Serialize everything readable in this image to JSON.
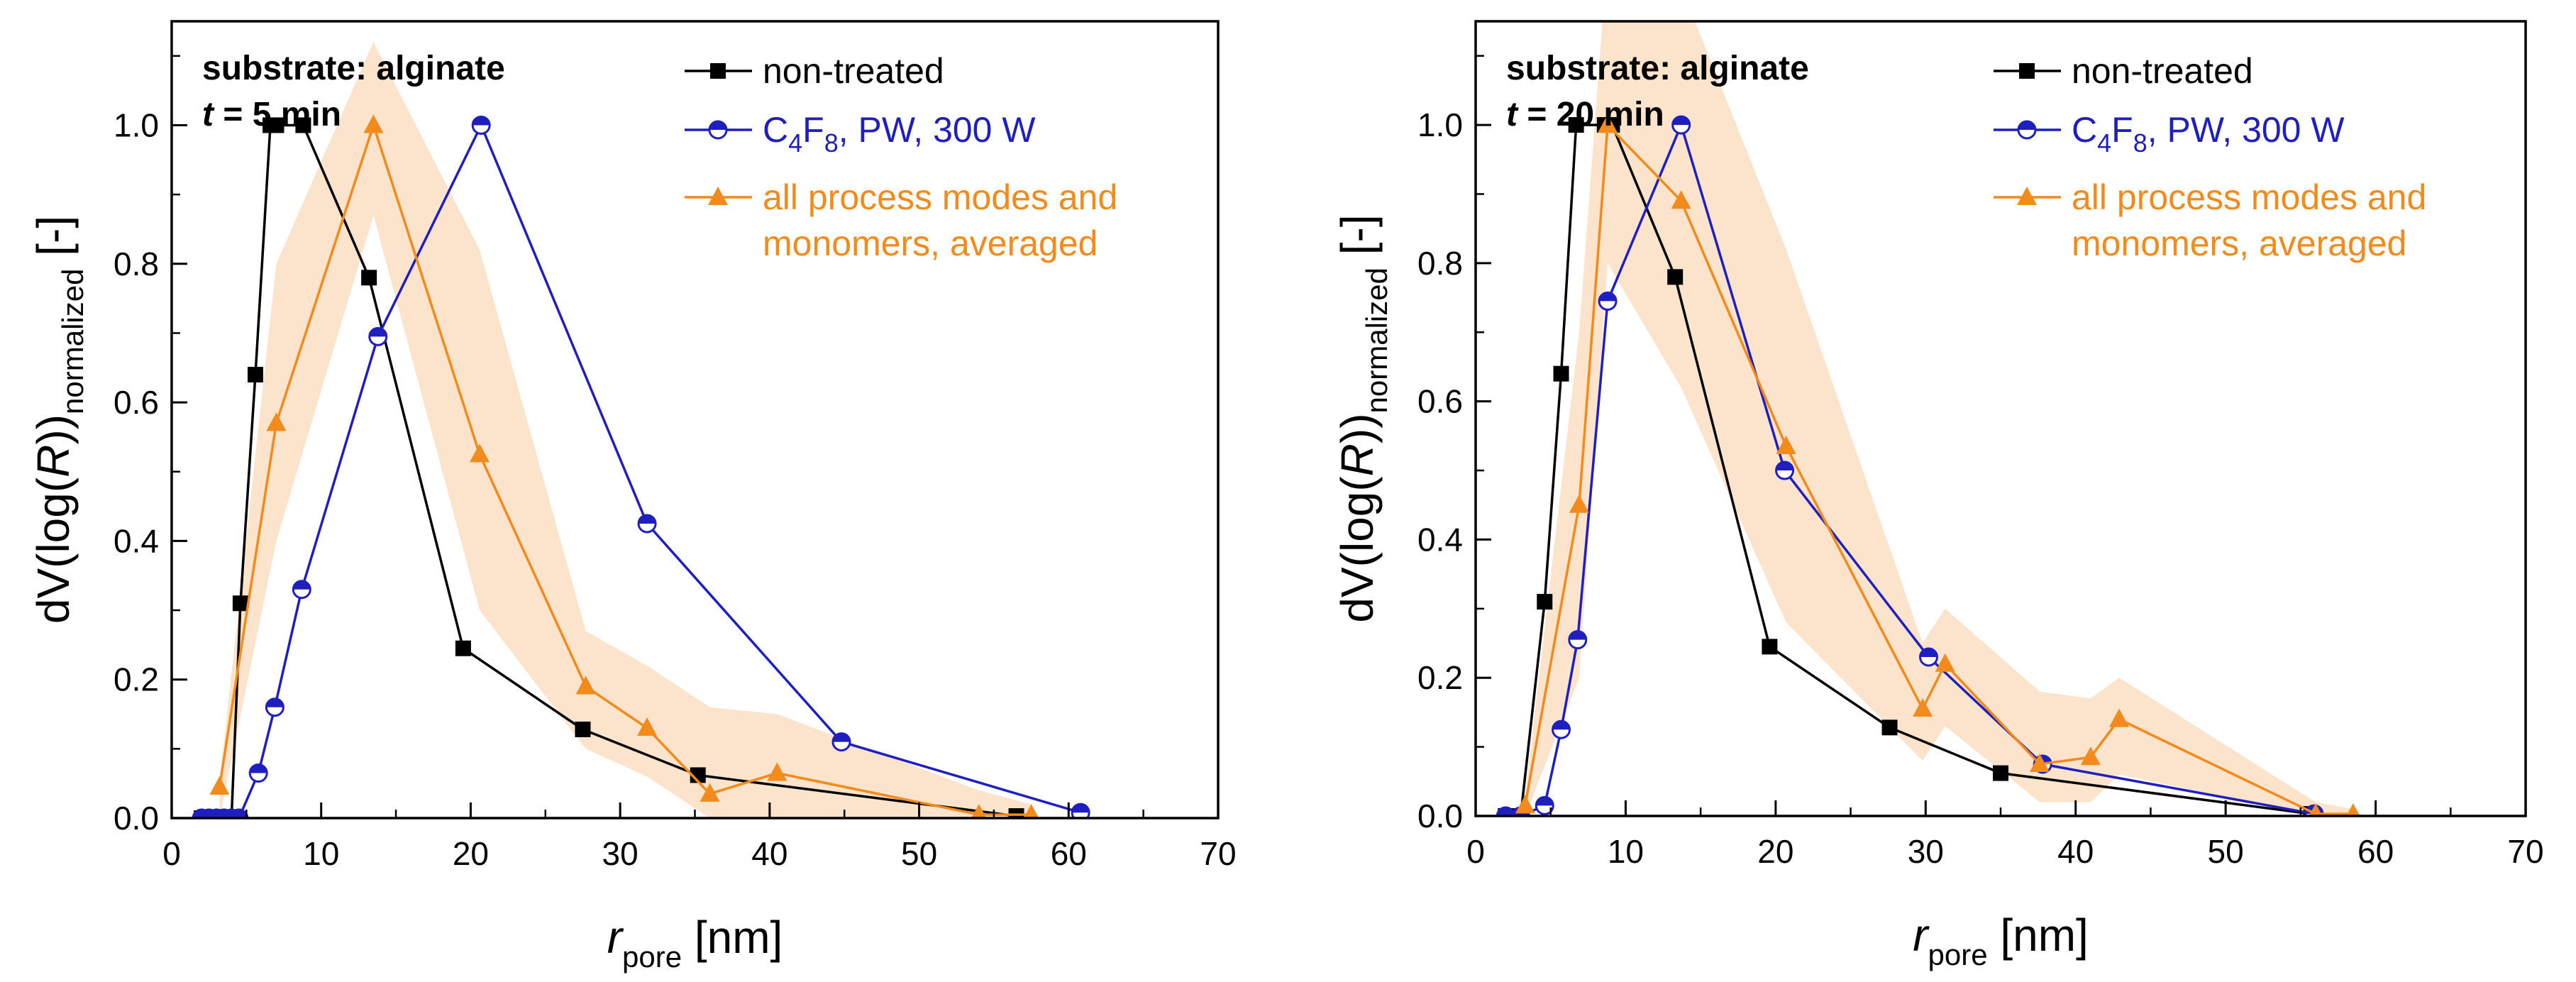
{
  "colors": {
    "non_treated": "#000000",
    "c4f8": "#1f1fbf",
    "averaged": "#f28a1c",
    "band": "#fbe3cc"
  },
  "chart_data": [
    {
      "type": "line",
      "annotation": {
        "line1": "substrate: alginate",
        "t_symbol": "t",
        "t_rest": " = 5 min"
      },
      "xlabel": {
        "main": "r",
        "sub": "pore",
        "unit": " [nm]"
      },
      "ylabel": {
        "prefix": "dV(log(",
        "italic": "R",
        "middle": "))",
        "sub": "normalized",
        "unit": " [-]"
      },
      "xlim": [
        0,
        70
      ],
      "ylim": [
        0,
        1.15
      ],
      "xticks": [
        "0",
        "10",
        "20",
        "30",
        "40",
        "50",
        "60",
        "70"
      ],
      "yticks": [
        "0.0",
        "0.2",
        "0.4",
        "0.6",
        "0.8",
        "1.0"
      ],
      "legend_position": "top-right",
      "series": [
        {
          "name": "non-treated",
          "key": "non_treated",
          "marker": "square",
          "x": [
            2,
            2.5,
            3,
            3.5,
            4,
            4.6,
            5.6,
            6.6,
            7.0,
            8.8,
            13.2,
            19.5,
            27.5,
            35.2,
            56.5
          ],
          "y": [
            0,
            0,
            0,
            0,
            0,
            0.31,
            0.64,
            1.0,
            1.0,
            1.0,
            0.78,
            0.245,
            0.128,
            0.062,
            0.003
          ]
        },
        {
          "name_parts": [
            "C",
            "4",
            "F",
            "8",
            ", PW, 300 W"
          ],
          "key": "c4f8",
          "marker": "half-circle",
          "x": [
            2,
            2.5,
            3,
            3.5,
            4,
            4.5,
            5.8,
            6.9,
            8.7,
            13.8,
            20.7,
            31.8,
            44.8,
            60.8
          ],
          "y": [
            0,
            0,
            0,
            0,
            0,
            0,
            0.065,
            0.16,
            0.33,
            0.695,
            1.0,
            0.425,
            0.11,
            0.008
          ]
        },
        {
          "name_line1": "all process modes and",
          "name_line2": "monomers, averaged",
          "key": "averaged",
          "marker": "triangle",
          "x": [
            3.2,
            7.0,
            13.5,
            20.6,
            27.7,
            31.8,
            36.0,
            40.5,
            54.0,
            57.5
          ],
          "y": [
            0.045,
            0.57,
            1.0,
            0.525,
            0.19,
            0.13,
            0.035,
            0.065,
            0.005,
            0.005
          ],
          "band_upper": [
            0.05,
            0.8,
            1.12,
            0.82,
            0.27,
            0.22,
            0.16,
            0.15,
            0.04,
            0.02
          ],
          "band_lower": [
            0.0,
            0.4,
            0.87,
            0.3,
            0.1,
            0.06,
            0.0,
            0.0,
            0.0,
            0.0
          ]
        }
      ]
    },
    {
      "type": "line",
      "annotation": {
        "line1": "substrate: alginate",
        "t_symbol": "t",
        "t_rest": " = 20 min"
      },
      "xlabel": {
        "main": "r",
        "sub": "pore",
        "unit": " [nm]"
      },
      "ylabel": {
        "prefix": "dV(log(",
        "italic": "R",
        "middle": "))",
        "sub": "normalized",
        "unit": " [-]"
      },
      "xlim": [
        0,
        70
      ],
      "ylim": [
        0,
        1.15
      ],
      "xticks": [
        "0",
        "10",
        "20",
        "30",
        "40",
        "50",
        "60",
        "70"
      ],
      "yticks": [
        "0.0",
        "0.2",
        "0.4",
        "0.6",
        "0.8",
        "1.0"
      ],
      "legend_position": "top-right",
      "series": [
        {
          "name": "non-treated",
          "key": "non_treated",
          "marker": "square",
          "x": [
            2,
            3,
            4.6,
            5.7,
            6.7,
            8.6,
            9.1,
            13.3,
            19.6,
            27.6,
            35.0,
            55.7
          ],
          "y": [
            0,
            0,
            0.31,
            0.64,
            1.0,
            1.0,
            1.0,
            0.78,
            0.245,
            0.128,
            0.062,
            0.003
          ]
        },
        {
          "name_parts": [
            "C",
            "4",
            "F",
            "8",
            ", PW, 300 W"
          ],
          "key": "c4f8",
          "marker": "half-circle",
          "x": [
            2,
            3,
            4.6,
            5.7,
            6.8,
            8.8,
            13.7,
            20.6,
            30.2,
            37.8,
            55.9
          ],
          "y": [
            0,
            0,
            0.015,
            0.125,
            0.255,
            0.745,
            1.0,
            0.5,
            0.23,
            0.075,
            0.003
          ]
        },
        {
          "name_line1": "all process modes and",
          "name_line2": "monomers, averaged",
          "key": "averaged",
          "marker": "triangle",
          "x": [
            3.3,
            6.9,
            8.8,
            13.7,
            20.7,
            29.8,
            31.3,
            37.6,
            41.0,
            42.9,
            56.0,
            58.5
          ],
          "y": [
            0.015,
            0.45,
            1.0,
            0.89,
            0.535,
            0.155,
            0.22,
            0.075,
            0.085,
            0.14,
            0.003,
            0.003
          ],
          "band_upper": [
            0.03,
            0.7,
            1.25,
            1.2,
            0.82,
            0.25,
            0.3,
            0.18,
            0.17,
            0.2,
            0.02,
            0.01
          ],
          "band_lower": [
            0.0,
            0.2,
            0.8,
            0.62,
            0.28,
            0.08,
            0.13,
            0.02,
            0.02,
            0.06,
            0.0,
            0.0
          ]
        }
      ]
    }
  ]
}
